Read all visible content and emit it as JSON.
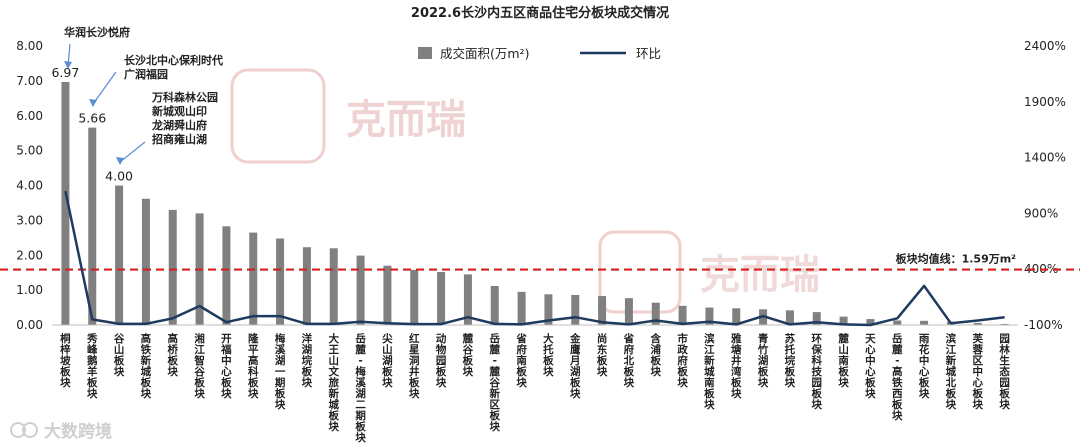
{
  "chart_data": {
    "type": "bar",
    "title": "2022.6长沙内五区商品住宅分板块成交情况",
    "categories": [
      "桐梓坡板块",
      "秀峰鹅羊板块",
      "谷山板块",
      "高铁新城板块",
      "高桥板块",
      "湘江智谷板块",
      "开福中心板块",
      "隆平高科板块",
      "梅溪湖一期板块",
      "洋湖垸板块",
      "大王山文旅新城板块",
      "岳麓-梅溪湖二期板块",
      "尖山湖板块",
      "红星洞井板块",
      "动物园板块",
      "麓谷板块",
      "岳麓-麓谷新区板块",
      "省府南板块",
      "大托板块",
      "金鹰月湖板块",
      "尚东板块",
      "省府北板块",
      "含浦板块",
      "市政府板块",
      "滨江新城南板块",
      "雅塘井湾板块",
      "青竹湖板块",
      "苏托垸板块",
      "环保科技园板块",
      "麓山南板块",
      "天心中心板块",
      "岳麓-高铁西板块",
      "雨花中心板块",
      "滨江新城北板块",
      "芙蓉区中心板块",
      "园林生态园板块"
    ],
    "series": [
      {
        "name": "成交面积(万m²)",
        "type": "bar",
        "axis": "left",
        "color": "#808080",
        "values": [
          6.97,
          5.66,
          4.0,
          3.62,
          3.3,
          3.2,
          2.83,
          2.65,
          2.48,
          2.23,
          2.2,
          1.99,
          1.7,
          1.58,
          1.52,
          1.45,
          1.12,
          0.95,
          0.88,
          0.86,
          0.83,
          0.77,
          0.64,
          0.55,
          0.5,
          0.48,
          0.45,
          0.42,
          0.37,
          0.24,
          0.17,
          0.13,
          0.12,
          0.09,
          0.06,
          0.03
        ]
      },
      {
        "name": "环比",
        "type": "line",
        "axis": "right",
        "color": "#1f3a5f",
        "values": [
          1100,
          -50,
          -90,
          -90,
          -40,
          70,
          -75,
          -20,
          -20,
          -90,
          -90,
          -70,
          -85,
          -92,
          -92,
          -30,
          -90,
          -95,
          -60,
          -30,
          -75,
          -95,
          -60,
          -90,
          -70,
          -95,
          -20,
          -95,
          -75,
          -95,
          -100,
          -40,
          250,
          -85,
          -60,
          -30
        ]
      }
    ],
    "ylim": [
      0,
      8
    ],
    "y_ticks": [
      "0.00",
      "1.00",
      "2.00",
      "3.00",
      "4.00",
      "5.00",
      "6.00",
      "7.00",
      "8.00"
    ],
    "y2lim": [
      -100,
      2400
    ],
    "y2_ticks": [
      "-100%",
      "400%",
      "900%",
      "1400%",
      "1900%",
      "2400%"
    ],
    "data_labels": [
      {
        "index": 0,
        "text": "6.97"
      },
      {
        "index": 1,
        "text": "5.66"
      },
      {
        "index": 2,
        "text": "4.00"
      }
    ],
    "annotations": [
      {
        "index": 0,
        "lines": [
          "华润长沙悦府"
        ]
      },
      {
        "index": 1,
        "lines": [
          "长沙北中心保利时代",
          "广润福园"
        ]
      },
      {
        "index": 2,
        "lines": [
          "万科森林公园",
          "新城观山印",
          "龙湖舜山府",
          "招商雍山湖"
        ]
      }
    ],
    "reference_line": {
      "value": 1.59,
      "axis": "left",
      "label": "板块均值线：1.59万m²",
      "color": "#d42020"
    },
    "legend_position": "top-center",
    "grid": false
  },
  "watermark": {
    "text": "克而瑞",
    "color": "#efd3d3"
  },
  "brand": {
    "text": "大数跨境"
  }
}
